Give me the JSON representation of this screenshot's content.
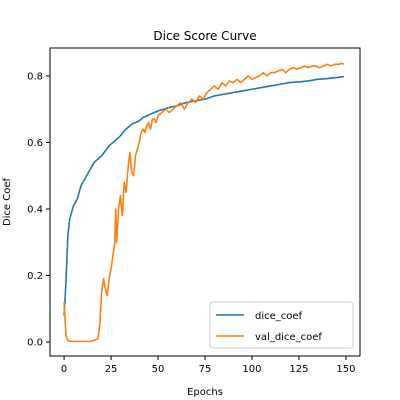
{
  "chart_data": {
    "type": "line",
    "title": "Dice Score Curve",
    "xlabel": "Epochs",
    "ylabel": "Dice Coef",
    "xlim": [
      -7.5,
      157.5
    ],
    "ylim": [
      -0.042,
      0.884
    ],
    "xticks": [
      0,
      25,
      50,
      75,
      100,
      125,
      150
    ],
    "yticks": [
      0.0,
      0.2,
      0.4,
      0.6,
      0.8
    ],
    "ytick_labels": [
      "0.0",
      "0.2",
      "0.4",
      "0.6",
      "0.8"
    ],
    "grid": false,
    "legend_position": "lower-right",
    "series": [
      {
        "name": "dice_coef",
        "color": "#1f77b4",
        "x": [
          0,
          1,
          2,
          3,
          4,
          5,
          6,
          7,
          8,
          9,
          10,
          12,
          14,
          16,
          18,
          20,
          22,
          24,
          26,
          28,
          30,
          32,
          34,
          36,
          38,
          40,
          42,
          44,
          46,
          48,
          50,
          53,
          56,
          60,
          65,
          70,
          75,
          80,
          85,
          90,
          95,
          100,
          105,
          110,
          115,
          120,
          125,
          130,
          135,
          140,
          145,
          149
        ],
        "y": [
          0.08,
          0.18,
          0.32,
          0.37,
          0.39,
          0.41,
          0.42,
          0.43,
          0.45,
          0.47,
          0.48,
          0.5,
          0.52,
          0.54,
          0.55,
          0.56,
          0.575,
          0.59,
          0.6,
          0.61,
          0.62,
          0.635,
          0.645,
          0.655,
          0.66,
          0.665,
          0.675,
          0.68,
          0.685,
          0.69,
          0.695,
          0.7,
          0.705,
          0.71,
          0.72,
          0.725,
          0.73,
          0.74,
          0.745,
          0.75,
          0.755,
          0.76,
          0.765,
          0.77,
          0.775,
          0.78,
          0.782,
          0.785,
          0.79,
          0.792,
          0.795,
          0.798
        ]
      },
      {
        "name": "val_dice_coef",
        "color": "#ff7f0e",
        "x": [
          0,
          1,
          2,
          3,
          4,
          5,
          6,
          8,
          10,
          12,
          14,
          16,
          18,
          19,
          20,
          21,
          22,
          23,
          24,
          25,
          26,
          27,
          27.5,
          28,
          29,
          30,
          31,
          32,
          33,
          34,
          35,
          36,
          37,
          38,
          39,
          40,
          41,
          42,
          43,
          44,
          45,
          46,
          47,
          48,
          49,
          50,
          52,
          54,
          56,
          58,
          60,
          62,
          64,
          66,
          68,
          70,
          72,
          74,
          76,
          78,
          80,
          82,
          84,
          86,
          88,
          90,
          92,
          94,
          96,
          98,
          100,
          102,
          104,
          106,
          108,
          110,
          112,
          114,
          116,
          118,
          120,
          122,
          124,
          126,
          128,
          130,
          132,
          134,
          136,
          138,
          140,
          142,
          144,
          146,
          148,
          149
        ],
        "y": [
          0.12,
          0.02,
          0.005,
          0.002,
          0.002,
          0.002,
          0.002,
          0.002,
          0.002,
          0.002,
          0.002,
          0.005,
          0.01,
          0.05,
          0.15,
          0.19,
          0.16,
          0.14,
          0.19,
          0.22,
          0.26,
          0.3,
          0.4,
          0.3,
          0.4,
          0.44,
          0.38,
          0.48,
          0.45,
          0.52,
          0.57,
          0.51,
          0.5,
          0.56,
          0.58,
          0.6,
          0.63,
          0.64,
          0.63,
          0.65,
          0.66,
          0.64,
          0.67,
          0.67,
          0.66,
          0.68,
          0.69,
          0.7,
          0.69,
          0.7,
          0.71,
          0.72,
          0.7,
          0.72,
          0.73,
          0.72,
          0.74,
          0.73,
          0.75,
          0.76,
          0.77,
          0.76,
          0.78,
          0.77,
          0.785,
          0.78,
          0.79,
          0.78,
          0.79,
          0.8,
          0.79,
          0.795,
          0.8,
          0.81,
          0.8,
          0.81,
          0.81,
          0.815,
          0.82,
          0.81,
          0.82,
          0.825,
          0.82,
          0.825,
          0.83,
          0.825,
          0.83,
          0.83,
          0.825,
          0.83,
          0.835,
          0.83,
          0.835,
          0.835,
          0.838,
          0.835
        ]
      }
    ]
  }
}
